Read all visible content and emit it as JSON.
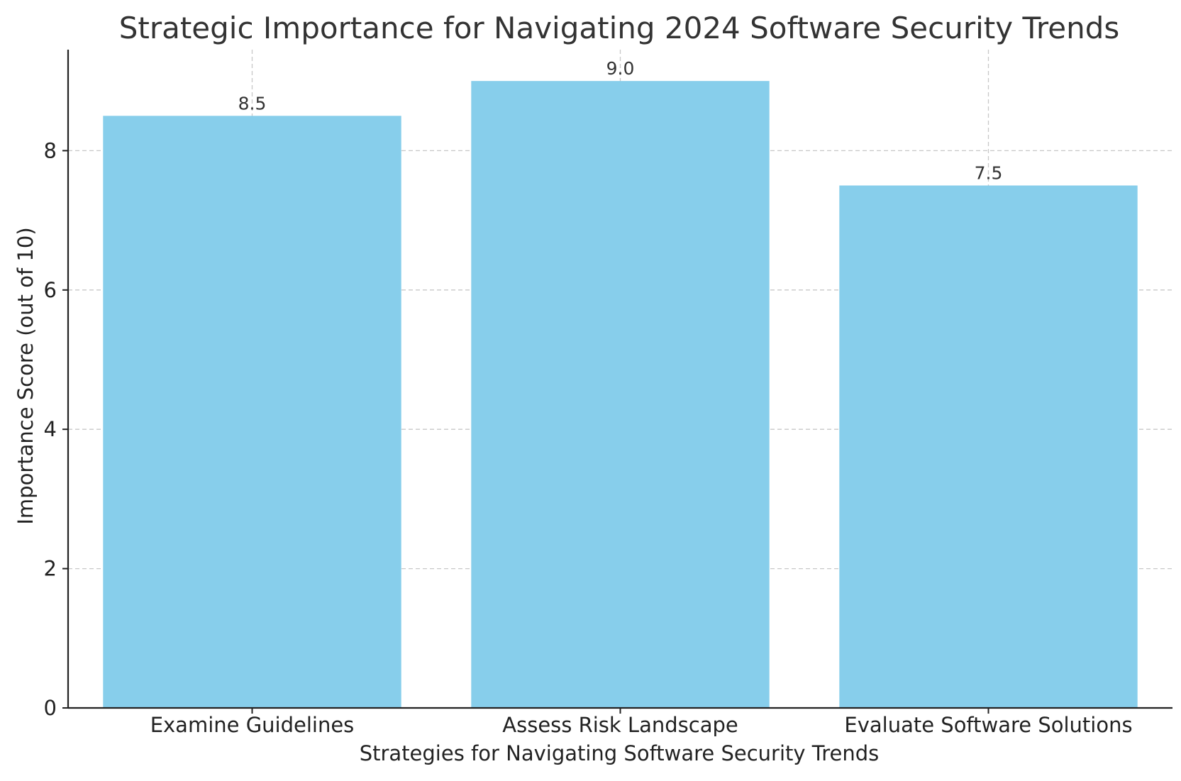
{
  "chart_data": {
    "type": "bar",
    "title": "Strategic Importance for Navigating 2024 Software Security Trends",
    "xlabel": "Strategies for Navigating Software Security Trends",
    "ylabel": "Importance Score (out of 10)",
    "categories": [
      "Examine Guidelines",
      "Assess Risk Landscape",
      "Evaluate Software Solutions"
    ],
    "values": [
      8.5,
      9.0,
      7.5
    ],
    "value_labels": [
      "8.5",
      "9.0",
      "7.5"
    ],
    "ylim": [
      0,
      9.45
    ],
    "yticks": [
      0,
      2,
      4,
      6,
      8
    ],
    "ytick_labels": [
      "0",
      "2",
      "4",
      "6",
      "8"
    ],
    "grid": true,
    "bar_color": "#87CEEB"
  }
}
